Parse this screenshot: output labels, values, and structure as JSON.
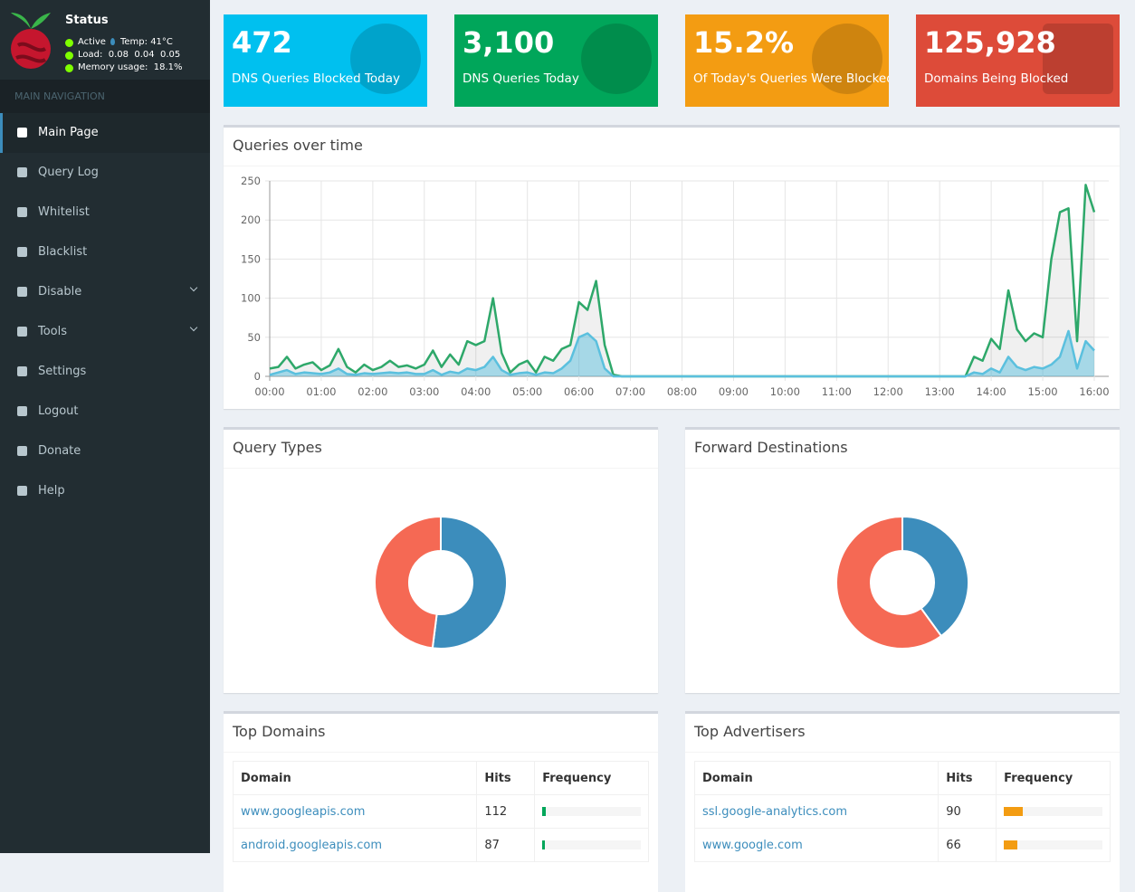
{
  "sidebar": {
    "status_title": "Status",
    "status": [
      "Active",
      "Temp: 41°C",
      "Load:  0.08  0.04  0.05",
      "Memory usage:  18.1%"
    ],
    "nav_header": "MAIN NAVIGATION",
    "nav": [
      "Main Page",
      "Query Log",
      "Whitelist",
      "Blacklist",
      "Disable",
      "Tools",
      "Settings",
      "Logout",
      "Donate",
      "Help"
    ]
  },
  "stats": [
    {
      "value": "472",
      "label": "DNS Queries Blocked Today",
      "color": "#00c0ef"
    },
    {
      "value": "3,100",
      "label": "DNS Queries Today",
      "color": "#00a65a"
    },
    {
      "value": "15.2%",
      "label": "Of Today's Queries Were Blocked",
      "color": "#f39c12"
    },
    {
      "value": "125,928",
      "label": "Domains Being Blocked",
      "color": "#dd4b39"
    }
  ],
  "chart_data": [
    {
      "type": "line",
      "title": "Queries over time",
      "categories": [
        "00:00",
        null,
        null,
        null,
        null,
        null,
        "01:00",
        null,
        null,
        null,
        null,
        null,
        "02:00",
        null,
        null,
        null,
        null,
        null,
        "03:00",
        null,
        null,
        null,
        null,
        null,
        "04:00",
        null,
        null,
        null,
        null,
        null,
        "05:00",
        null,
        null,
        null,
        null,
        null,
        "06:00",
        null,
        null,
        null,
        null,
        null,
        "07:00",
        null,
        null,
        null,
        null,
        null,
        "08:00",
        null,
        null,
        null,
        null,
        null,
        "09:00",
        null,
        null,
        null,
        null,
        null,
        "10:00",
        null,
        null,
        null,
        null,
        null,
        "11:00",
        null,
        null,
        null,
        null,
        null,
        "12:00",
        null,
        null,
        null,
        null,
        null,
        "13:00",
        null,
        null,
        null,
        null,
        null,
        "14:00",
        null,
        null,
        null,
        null,
        null,
        "15:00",
        null,
        null,
        null,
        null,
        null,
        "16:00"
      ],
      "series": [
        {
          "color": "#2ea86a",
          "values": [
            10,
            12,
            25,
            10,
            15,
            18,
            8,
            14,
            35,
            12,
            5,
            15,
            8,
            12,
            20,
            12,
            14,
            10,
            15,
            33,
            12,
            28,
            15,
            45,
            40,
            45,
            100,
            30,
            5,
            15,
            20,
            5,
            25,
            20,
            35,
            40,
            95,
            85,
            122,
            40,
            2,
            0,
            0,
            0,
            0,
            0,
            0,
            0,
            0,
            0,
            0,
            0,
            0,
            0,
            0,
            0,
            0,
            0,
            0,
            0,
            0,
            0,
            0,
            0,
            0,
            0,
            0,
            0,
            0,
            0,
            0,
            0,
            0,
            0,
            0,
            0,
            0,
            0,
            0,
            0,
            0,
            0,
            25,
            20,
            48,
            35,
            110,
            60,
            45,
            55,
            50,
            150,
            210,
            215,
            45,
            245,
            210
          ]
        },
        {
          "color": "#5bc0de",
          "values": [
            2,
            5,
            8,
            3,
            5,
            4,
            3,
            5,
            10,
            3,
            2,
            4,
            3,
            4,
            5,
            4,
            5,
            3,
            3,
            8,
            2,
            6,
            4,
            10,
            8,
            12,
            25,
            8,
            2,
            4,
            5,
            2,
            5,
            4,
            10,
            20,
            50,
            55,
            45,
            10,
            0,
            0,
            0,
            0,
            0,
            0,
            0,
            0,
            0,
            0,
            0,
            0,
            0,
            0,
            0,
            0,
            0,
            0,
            0,
            0,
            0,
            0,
            0,
            0,
            0,
            0,
            0,
            0,
            0,
            0,
            0,
            0,
            0,
            0,
            0,
            0,
            0,
            0,
            0,
            0,
            0,
            0,
            5,
            3,
            10,
            5,
            25,
            12,
            8,
            12,
            10,
            15,
            25,
            58,
            10,
            45,
            33
          ]
        }
      ],
      "ylim": [
        0,
        250
      ],
      "yticks": [
        0,
        50,
        100,
        150,
        200,
        250
      ],
      "grid": true
    },
    {
      "type": "pie",
      "title": "Query Types",
      "values": [
        52,
        48
      ],
      "colors": [
        "#3c8dbc",
        "#f56954"
      ],
      "donut": true
    },
    {
      "type": "pie",
      "title": "Forward Destinations",
      "values": [
        40,
        60
      ],
      "colors": [
        "#3c8dbc",
        "#f56954"
      ],
      "donut": true
    }
  ],
  "tables": [
    {
      "title": "Top Domains",
      "columns": [
        "Domain",
        "Hits",
        "Frequency"
      ],
      "rows": [
        [
          "www.googleapis.com",
          112
        ],
        [
          "android.googleapis.com",
          87
        ]
      ],
      "bar_color": "#00a65a"
    },
    {
      "title": "Top Advertisers",
      "columns": [
        "Domain",
        "Hits",
        "Frequency"
      ],
      "rows": [
        [
          "ssl.google-analytics.com",
          90
        ],
        [
          "www.google.com",
          66
        ]
      ],
      "bar_color": "#f39c12"
    }
  ]
}
